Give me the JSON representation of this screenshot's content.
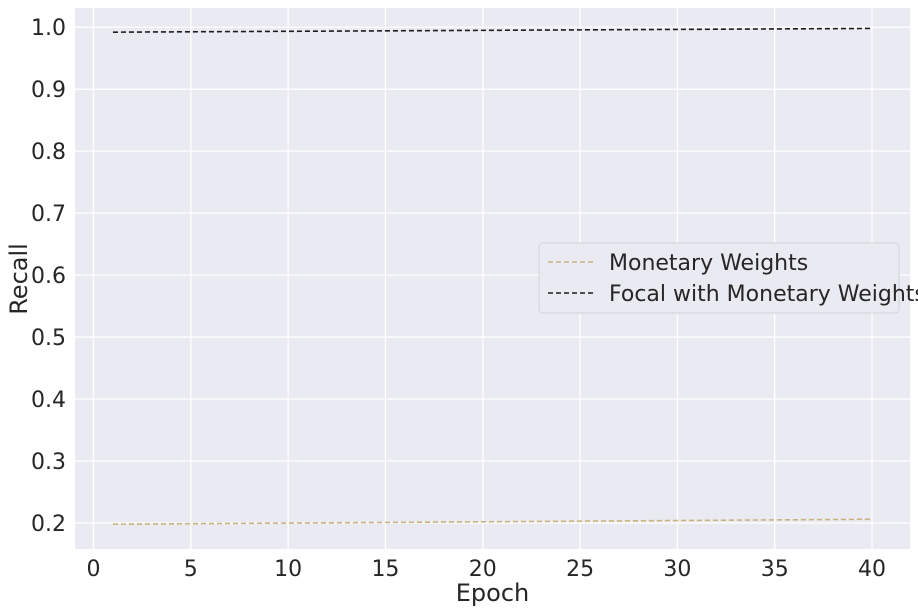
{
  "chart_data": {
    "type": "line",
    "xlabel": "Epoch",
    "ylabel": "Recall",
    "xlim": [
      -0.95,
      41.95
    ],
    "ylim": [
      0.158,
      1.031
    ],
    "xticks": [
      0,
      5,
      10,
      15,
      20,
      25,
      30,
      35,
      40
    ],
    "yticks": [
      0.2,
      0.3,
      0.4,
      0.5,
      0.6,
      0.7,
      0.8,
      0.9,
      1.0
    ],
    "x": [
      1,
      40
    ],
    "series": [
      {
        "name": "Monetary Weights",
        "values": [
          0.198,
          0.206
        ],
        "color": "#c9b27c",
        "style": "dashed"
      },
      {
        "name": "Focal with Monetary Weights",
        "values": [
          0.992,
          0.998
        ],
        "color": "#1c1c1c",
        "style": "dashed"
      }
    ],
    "grid": true,
    "background": "#eaeaf2",
    "legend_position": "center-right"
  }
}
